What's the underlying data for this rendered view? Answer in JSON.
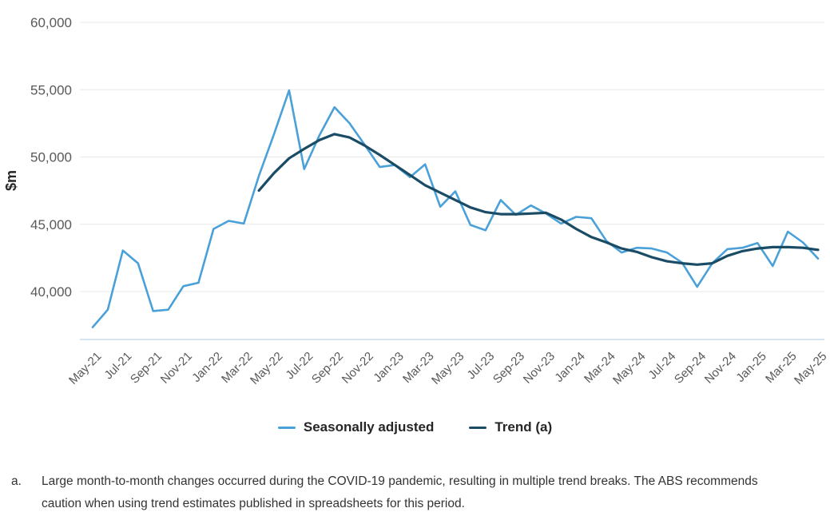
{
  "chart_data": {
    "type": "line",
    "title": "",
    "xlabel": "",
    "ylabel": "$m",
    "grid": "horizontal",
    "legend_position": "bottom",
    "ylim": [
      36440,
      60000
    ],
    "yticks": [
      40000,
      45000,
      50000,
      55000,
      60000
    ],
    "x_tick_every": 2,
    "x": [
      "May-21",
      "Jun-21",
      "Jul-21",
      "Aug-21",
      "Sep-21",
      "Oct-21",
      "Nov-21",
      "Dec-21",
      "Jan-22",
      "Feb-22",
      "Mar-22",
      "Apr-22",
      "May-22",
      "Jun-22",
      "Jul-22",
      "Aug-22",
      "Sep-22",
      "Oct-22",
      "Nov-22",
      "Dec-22",
      "Jan-23",
      "Feb-23",
      "Mar-23",
      "Apr-23",
      "May-23",
      "Jun-23",
      "Jul-23",
      "Aug-23",
      "Sep-23",
      "Oct-23",
      "Nov-23",
      "Dec-23",
      "Jan-24",
      "Feb-24",
      "Mar-24",
      "Apr-24",
      "May-24",
      "Jun-24",
      "Jul-24",
      "Aug-24",
      "Sep-24",
      "Oct-24",
      "Nov-24",
      "Dec-24",
      "Jan-25",
      "Feb-25",
      "Mar-25",
      "Apr-25",
      "May-25"
    ],
    "series": [
      {
        "name": "Seasonally adjusted",
        "color": "#4AA0D8",
        "stroke_width": 2.6,
        "values": [
          37350,
          38650,
          43050,
          42100,
          38550,
          38650,
          40400,
          40650,
          44650,
          45250,
          45050,
          48600,
          51700,
          54950,
          49100,
          51600,
          53700,
          52500,
          50900,
          49250,
          49400,
          48500,
          49450,
          46300,
          47450,
          44950,
          44550,
          46800,
          45700,
          46400,
          45800,
          45050,
          45550,
          45450,
          43750,
          42900,
          43250,
          43200,
          42900,
          42150,
          40350,
          42100,
          43150,
          43250,
          43600,
          41900,
          44450,
          43650,
          42450
        ]
      },
      {
        "name": "Trend (a)",
        "color": "#1A4C66",
        "stroke_width": 3.2,
        "values": [
          null,
          null,
          null,
          null,
          null,
          null,
          null,
          null,
          null,
          null,
          null,
          47500,
          48800,
          49900,
          50600,
          51250,
          51700,
          51450,
          50850,
          50150,
          49400,
          48650,
          47900,
          47350,
          46800,
          46250,
          45900,
          45750,
          45750,
          45800,
          45850,
          45350,
          44650,
          44050,
          43650,
          43200,
          42950,
          42550,
          42250,
          42100,
          42000,
          42100,
          42650,
          43000,
          43200,
          43300,
          43300,
          43250,
          43100
        ]
      }
    ],
    "style": {
      "gridline_color": "#e8e8e8",
      "baseline_color": "#c7dbea",
      "tick_label_color": "#595959",
      "axis_title_color": "#262626"
    }
  },
  "footnote": {
    "marker": "a.",
    "text": "Large month-to-month changes occurred during the COVID-19 pandemic, resulting in multiple trend breaks. The ABS recommends caution when using trend estimates published in spreadsheets for this period."
  }
}
